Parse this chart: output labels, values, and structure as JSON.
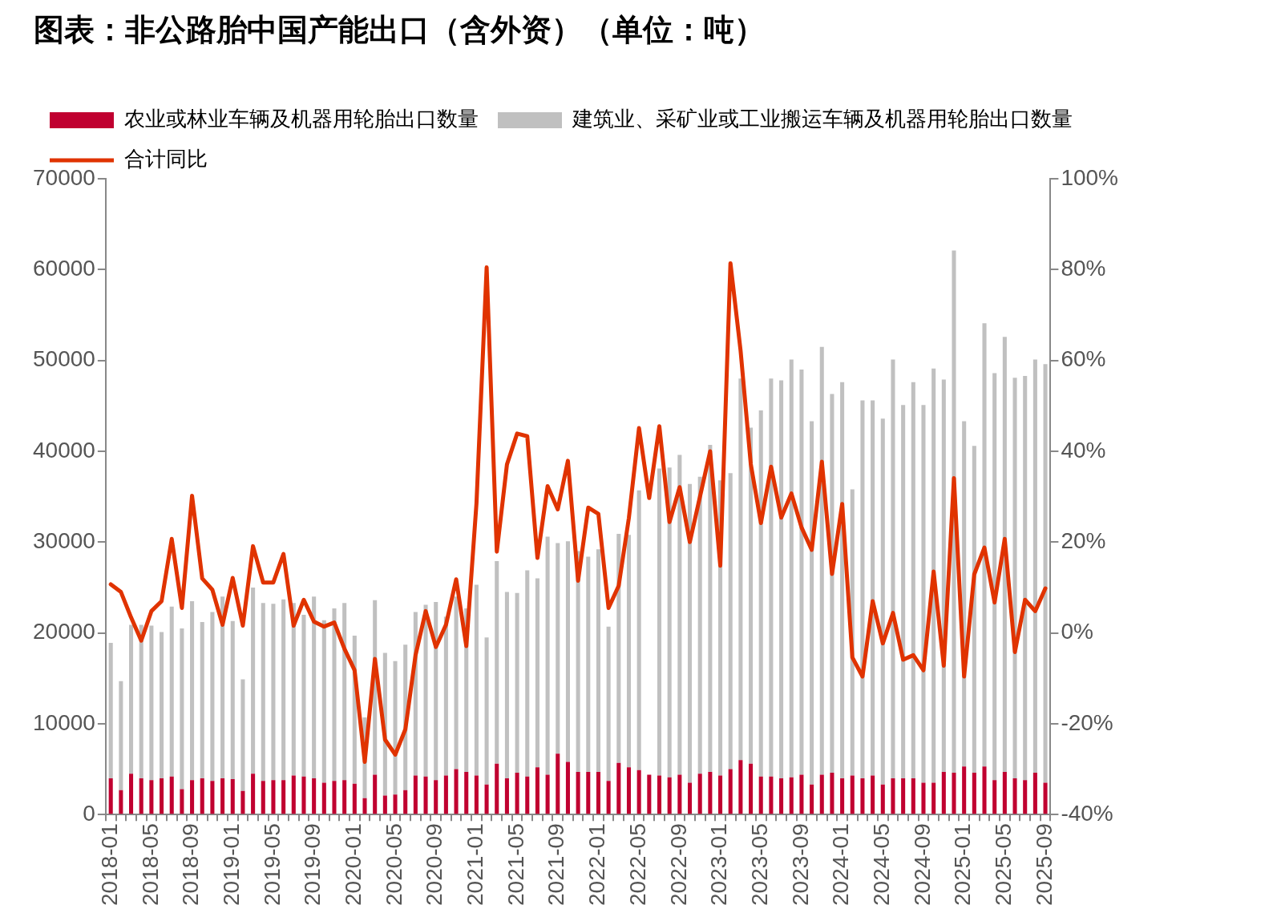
{
  "chart_data": {
    "type": "bar",
    "title": "图表：非公路胎中国产能出口（含外资）（单位：吨）",
    "categories": [
      "2018-01",
      null,
      null,
      null,
      "2018-05",
      null,
      null,
      null,
      "2018-09",
      null,
      null,
      null,
      "2019-01",
      null,
      null,
      null,
      "2019-05",
      null,
      null,
      null,
      "2019-09",
      null,
      null,
      null,
      "2020-01",
      null,
      null,
      null,
      "2020-05",
      null,
      null,
      null,
      "2020-09",
      null,
      null,
      null,
      "2021-01",
      null,
      null,
      null,
      "2021-05",
      null,
      null,
      null,
      "2021-09",
      null,
      null,
      null,
      "2022-01",
      null,
      null,
      null,
      "2022-05",
      null,
      null,
      null,
      "2022-09",
      null,
      null,
      null,
      "2023-01",
      null,
      null,
      null,
      "2023-05",
      null,
      null,
      null,
      "2023-09",
      null,
      null,
      null,
      "2024-01",
      null,
      null,
      null,
      "2024-05",
      null,
      null,
      null,
      "2024-09",
      null,
      null,
      null,
      "2025-01",
      null,
      null,
      null,
      "2025-05",
      null,
      null,
      null,
      "2025-09"
    ],
    "stacked": true,
    "series": [
      {
        "name": "农业或林业车辆及机器用轮胎出口数量",
        "color": "#c00030",
        "values": [
          4000,
          2700,
          4500,
          4000,
          3800,
          4000,
          4200,
          2800,
          3800,
          4000,
          3700,
          4000,
          3900,
          2600,
          4500,
          3700,
          3800,
          3800,
          4300,
          4200,
          4000,
          3500,
          3700,
          3800,
          3400,
          1800,
          4400,
          2100,
          2200,
          2700,
          4300,
          4200,
          3800,
          4300,
          5000,
          4700,
          4300,
          3300,
          5600,
          4000,
          4600,
          4200,
          5200,
          4400,
          6700,
          5800,
          4700,
          4700,
          4700,
          3700,
          5700,
          5200,
          4900,
          4400,
          4300,
          4100,
          4400,
          3500,
          4500,
          4700,
          4300,
          5000,
          6000,
          5600,
          4200,
          4200,
          4000,
          4100,
          4400,
          3300,
          4400,
          4600,
          4000,
          4300,
          4000,
          4300,
          3300,
          4000,
          4000,
          4000,
          3500,
          3500,
          4700,
          4600,
          5300,
          4600,
          5300,
          3800,
          4700,
          4000,
          3800,
          4600,
          3500
        ]
      },
      {
        "name": "建筑业、采矿业或工业搬运车辆及机器用轮胎出口数量",
        "color": "#c0c0c0",
        "values": [
          14900,
          12000,
          16400,
          16900,
          17000,
          16100,
          18700,
          17700,
          19700,
          17200,
          18600,
          20000,
          17400,
          12300,
          20500,
          19600,
          19400,
          19900,
          19000,
          17800,
          20000,
          17900,
          19000,
          19500,
          16300,
          8900,
          19200,
          15700,
          14700,
          16000,
          18000,
          18900,
          19600,
          17500,
          19000,
          18000,
          21000,
          16200,
          22300,
          20500,
          19800,
          22700,
          20800,
          26200,
          23200,
          24300,
          24300,
          23700,
          24500,
          17000,
          25200,
          25600,
          30800,
          null,
          33800,
          34100,
          35200,
          32900,
          32700,
          36000,
          32500,
          32600,
          42000,
          37000,
          40300,
          43800,
          43800,
          46000,
          44600,
          40000,
          47100,
          41700,
          43600,
          31500,
          41600,
          41300,
          40300,
          46100,
          41100,
          43600,
          41600,
          45600,
          43200,
          57500,
          38000,
          36000,
          48800,
          44800,
          47900,
          44100,
          44500,
          45500,
          46100
        ]
      },
      {
        "name": "合计同比",
        "type": "line",
        "axis": "y2",
        "color": "#e03300",
        "values": [
          10.7,
          9.0,
          3.4,
          -1.7,
          4.8,
          7.0,
          20.7,
          5.5,
          30.2,
          12.0,
          9.5,
          1.8,
          12.1,
          1.6,
          19.1,
          11.1,
          11.1,
          17.4,
          1.6,
          7.3,
          2.5,
          1.4,
          2.3,
          -3.5,
          -8.2,
          -28.4,
          -5.7,
          -23.5,
          -26.8,
          -21.2,
          -4.9,
          4.8,
          -3.1,
          1.8,
          11.8,
          -2.9,
          28.6,
          80.5,
          17.9,
          37.1,
          43.9,
          43.3,
          16.5,
          32.3,
          27.2,
          37.9,
          11.5,
          27.6,
          26.2,
          5.5,
          10.4,
          25.3,
          45.1,
          29.7,
          45.5,
          24.4,
          32.1,
          20.0,
          30.0,
          40.0,
          14.8,
          81.4,
          62.1,
          37.2,
          24.2,
          36.6,
          25.4,
          30.7,
          23.2,
          18.3,
          37.7,
          13.0,
          28.4,
          -5.4,
          -9.6,
          7.0,
          -2.3,
          4.4,
          -5.9,
          -4.9,
          -8.2,
          13.5,
          -7.2,
          34.1,
          -9.6,
          12.9,
          18.8,
          6.7,
          20.7,
          -4.2,
          7.3,
          4.8,
          9.8
        ]
      }
    ],
    "ylim": [
      0,
      70000
    ],
    "yticks": [
      0,
      10000,
      20000,
      30000,
      40000,
      50000,
      60000,
      70000
    ],
    "y2lim": [
      -40,
      100
    ],
    "y2ticks": [
      {
        "value": -40,
        "label": "-40%"
      },
      {
        "value": -20,
        "label": "-20%"
      },
      {
        "value": 0,
        "label": "0%"
      },
      {
        "value": 20,
        "label": "20%"
      },
      {
        "value": 40,
        "label": "40%"
      },
      {
        "value": 60,
        "label": "60%"
      },
      {
        "value": 80,
        "label": "80%"
      },
      {
        "value": 100,
        "label": "100%"
      }
    ],
    "grid": false,
    "legend": "top",
    "marker": "none",
    "line_style": "solid"
  }
}
